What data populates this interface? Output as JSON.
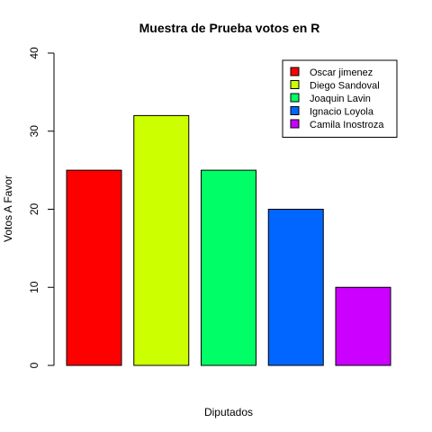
{
  "chart_data": {
    "type": "bar",
    "title": "Muestra de Prueba votos en R",
    "xlabel": "Diputados",
    "ylabel": "Votos A Favor",
    "ylim": [
      0,
      40
    ],
    "yticks": [
      0,
      10,
      20,
      30,
      40
    ],
    "categories": [
      "Oscar jimenez",
      "Diego Sandoval",
      "Joaquin Lavin",
      "Ignacio Loyola",
      "Camila Inostroza"
    ],
    "values": [
      25,
      32,
      25,
      20,
      10
    ],
    "colors": [
      "#FF0000",
      "#CCFF00",
      "#00FF66",
      "#0066FF",
      "#CC00FF"
    ],
    "grid": false,
    "legend": {
      "position": "top-right",
      "entries": [
        "Oscar jimenez",
        "Diego Sandoval",
        "Joaquin Lavin",
        "Ignacio Loyola",
        "Camila Inostroza"
      ]
    }
  }
}
